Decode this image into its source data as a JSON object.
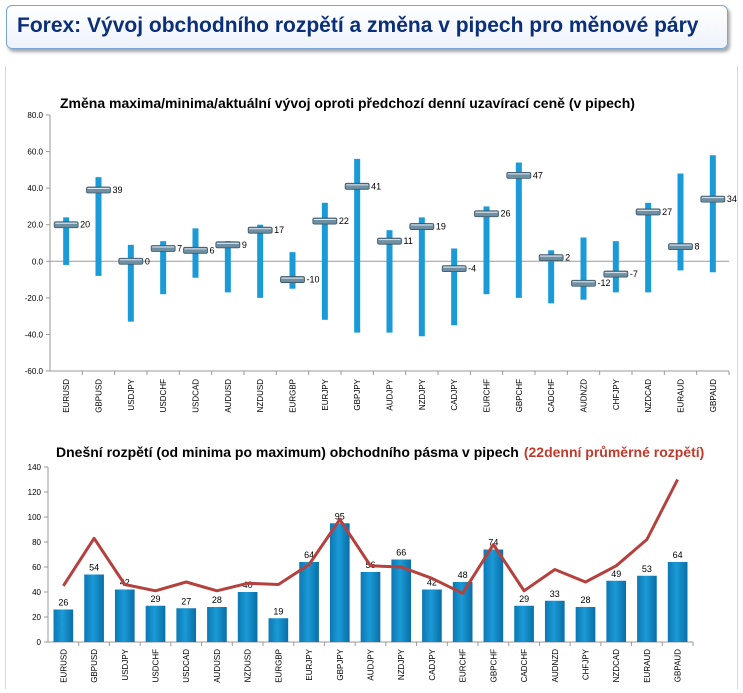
{
  "page": {
    "title": "Forex: Vývoj obchodního rozpětí a změna v pipech pro měnové páry"
  },
  "chart_data": [
    {
      "type": "range-bar",
      "title": "Změna maxima/minima/aktuální vývoj oproti předchozí denní uzavírací ceně (v pipech)",
      "xlabel": "",
      "ylabel": "",
      "ylim": [
        -60,
        80
      ],
      "yticks": [
        "80.0",
        "60.0",
        "40.0",
        "20.0",
        "0.0",
        "-20.0",
        "-40.0",
        "-60.0"
      ],
      "grid": false,
      "bar_color": "#1a9ad6",
      "categories": [
        "EURUSD",
        "GBPUSD",
        "USDJPY",
        "USDCHF",
        "USDCAD",
        "AUDUSD",
        "NZDUSD",
        "EURGBP",
        "EURJPY",
        "GBPJPY",
        "AUDJPY",
        "NZDJPY",
        "CADJPY",
        "EURCHF",
        "GBPCHF",
        "CADCHF",
        "AUDNZD",
        "CHFJPY",
        "NZDCAD",
        "EURAUD",
        "GBPAUD"
      ],
      "high": [
        24,
        46,
        9,
        11,
        18,
        11,
        20,
        5,
        32,
        56,
        17,
        24,
        7,
        30,
        54,
        6,
        13,
        11,
        32,
        48,
        58
      ],
      "low": [
        -2,
        -8,
        -33,
        -18,
        -9,
        -17,
        -20,
        -15,
        -32,
        -39,
        -39,
        -41,
        -35,
        -18,
        -20,
        -23,
        -21,
        -17,
        -17,
        -5,
        -6
      ],
      "current": [
        20,
        39,
        0,
        7,
        6,
        9,
        17,
        -10,
        22,
        41,
        11,
        19,
        -4,
        26,
        47,
        2,
        -12,
        -7,
        27,
        8,
        34
      ]
    },
    {
      "type": "bar",
      "title": "Dnešní rozpětí (od minima po maximum) obchodního pásma v pipech",
      "title_highlight": "(22denní průměrné rozpětí)",
      "xlabel": "",
      "ylabel": "",
      "ylim": [
        0,
        140
      ],
      "yticks": [
        "140",
        "120",
        "100",
        "80",
        "60",
        "40",
        "20",
        "0"
      ],
      "grid": false,
      "bar_color": "#1a9ad6",
      "line_color": "#b5413e",
      "categories": [
        "EURUSD",
        "GBPUSD",
        "USDJPY",
        "USDCHF",
        "USDCAD",
        "AUDUSD",
        "NZDUSD",
        "EURGBP",
        "EURJPY",
        "GBPJPY",
        "AUDJPY",
        "NZDJPY",
        "CADJPY",
        "EURCHF",
        "GBPCHF",
        "CADCHF",
        "AUDNZD",
        "CHFJPY",
        "NZDCAD",
        "EURAUD",
        "GBPAUD"
      ],
      "series": [
        {
          "kind": "bar",
          "values": [
            26,
            54,
            42,
            29,
            27,
            28,
            40,
            19,
            64,
            95,
            56,
            66,
            42,
            48,
            74,
            29,
            33,
            28,
            49,
            53,
            64
          ]
        },
        {
          "kind": "line",
          "values": [
            45,
            83,
            46,
            41,
            48,
            41,
            47,
            46,
            62,
            98,
            61,
            60,
            51,
            39,
            78,
            41,
            58,
            48,
            61,
            82,
            130
          ]
        }
      ]
    }
  ]
}
